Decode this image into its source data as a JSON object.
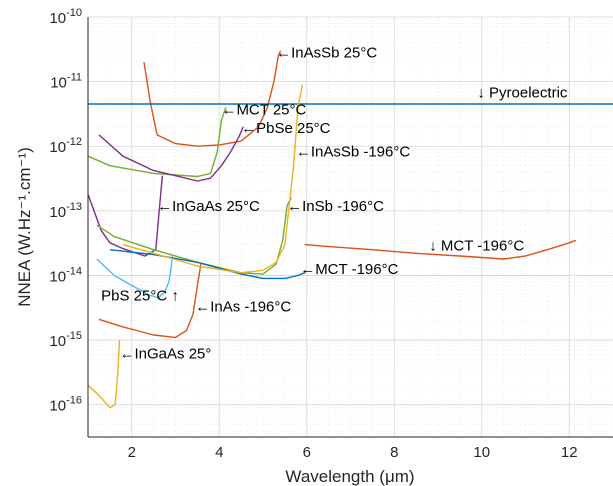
{
  "chart_data": {
    "type": "line",
    "xlabel": "Wavelength (μm)",
    "ylabel": "NNEA (W.Hz⁻¹.cm⁻¹)",
    "xlim": [
      1,
      13
    ],
    "ylim_log10": [
      -16.5,
      -10
    ],
    "yscale": "log",
    "grid": true,
    "x_ticks": [
      "2",
      "4",
      "6",
      "8",
      "10",
      "12"
    ],
    "y_ticks": [
      {
        "base": "10",
        "exp": "-16"
      },
      {
        "base": "10",
        "exp": "-15"
      },
      {
        "base": "10",
        "exp": "-14"
      },
      {
        "base": "10",
        "exp": "-13"
      },
      {
        "base": "10",
        "exp": "-12"
      },
      {
        "base": "10",
        "exp": "-11"
      },
      {
        "base": "10",
        "exp": "-10"
      }
    ],
    "series": [
      {
        "color": "#d95319",
        "points": [
          [
            2.28,
            2e-11
          ],
          [
            2.42,
            5e-12
          ],
          [
            2.58,
            1.5e-12
          ],
          [
            3.0,
            1.1e-12
          ],
          [
            3.5,
            1e-12
          ],
          [
            4.0,
            1.05e-12
          ],
          [
            4.5,
            1.2e-12
          ],
          [
            4.9,
            2e-12
          ],
          [
            5.1,
            4e-12
          ],
          [
            5.25,
            1e-11
          ],
          [
            5.35,
            2.5e-11
          ],
          [
            5.4,
            3e-11
          ]
        ]
      },
      {
        "color": "#0072bd",
        "points": [
          [
            1.0,
            4.5e-12
          ],
          [
            13.0,
            4.5e-12
          ]
        ]
      },
      {
        "color": "#77ac30",
        "points": [
          [
            1.0,
            7e-13
          ],
          [
            1.5,
            5e-13
          ],
          [
            2.5,
            3.8e-13
          ],
          [
            3.5,
            3.4e-13
          ],
          [
            3.8,
            3.8e-13
          ],
          [
            3.95,
            8e-13
          ],
          [
            4.05,
            2.5e-12
          ],
          [
            4.15,
            4e-12
          ]
        ]
      },
      {
        "color": "#7e2f8e",
        "points": [
          [
            1.25,
            1.5e-12
          ],
          [
            1.8,
            7e-13
          ],
          [
            2.5,
            4.2e-13
          ],
          [
            3.0,
            3.5e-13
          ],
          [
            3.5,
            2.9e-13
          ],
          [
            3.8,
            3.2e-13
          ],
          [
            4.05,
            5e-13
          ],
          [
            4.25,
            8e-13
          ],
          [
            4.45,
            1.4e-12
          ],
          [
            4.55,
            2e-12
          ]
        ]
      },
      {
        "color": "#7e2f8e",
        "points": [
          [
            1.0,
            1.8e-13
          ],
          [
            1.3,
            5e-14
          ],
          [
            1.5,
            3.2e-14
          ],
          [
            1.8,
            2.6e-14
          ],
          [
            2.3,
            2e-14
          ],
          [
            2.55,
            2.5e-14
          ],
          [
            2.65,
            1.5e-13
          ],
          [
            2.7,
            3.5e-13
          ]
        ]
      },
      {
        "color": "#edb120",
        "points": [
          [
            1.0,
            2e-16
          ],
          [
            1.25,
            1.4e-16
          ],
          [
            1.5,
            9e-17
          ],
          [
            1.62,
            1e-16
          ],
          [
            1.68,
            3e-16
          ],
          [
            1.72,
            1e-15
          ]
        ]
      },
      {
        "color": "#d95319",
        "points": [
          [
            1.25,
            2.1e-15
          ],
          [
            1.8,
            1.6e-15
          ],
          [
            2.5,
            1.2e-15
          ],
          [
            3.0,
            1.1e-15
          ],
          [
            3.25,
            1.4e-15
          ],
          [
            3.4,
            2.5e-15
          ],
          [
            3.5,
            7e-15
          ],
          [
            3.58,
            1.5e-14
          ]
        ]
      },
      {
        "color": "#4dbeee",
        "points": [
          [
            1.2,
            1.8e-14
          ],
          [
            1.6,
            1e-14
          ],
          [
            2.0,
            7e-15
          ],
          [
            2.4,
            5e-15
          ],
          [
            2.6,
            4.5e-15
          ],
          [
            2.75,
            5.5e-15
          ],
          [
            2.85,
            8e-15
          ],
          [
            2.9,
            1.3e-14
          ],
          [
            2.93,
            2e-14
          ]
        ]
      },
      {
        "color": "#77ac30",
        "points": [
          [
            1.2,
            6e-14
          ],
          [
            1.6,
            4e-14
          ],
          [
            2.5,
            2.5e-14
          ],
          [
            3.5,
            1.6e-14
          ],
          [
            4.5,
            1.1e-14
          ],
          [
            5.0,
            1.05e-14
          ],
          [
            5.3,
            1.5e-14
          ],
          [
            5.45,
            3.5e-14
          ],
          [
            5.55,
            1.2e-13
          ],
          [
            5.65,
            1.6e-13
          ]
        ]
      },
      {
        "color": "#0072bd",
        "points": [
          [
            1.5,
            2.5e-14
          ],
          [
            2.5,
            2.1e-14
          ],
          [
            3.5,
            1.6e-14
          ],
          [
            4.5,
            1.05e-14
          ],
          [
            5.0,
            9e-15
          ],
          [
            5.5,
            9e-15
          ],
          [
            5.8,
            1e-14
          ],
          [
            5.95,
            1.1e-14
          ]
        ]
      },
      {
        "color": "#edb120",
        "points": [
          [
            1.8,
            3e-14
          ],
          [
            2.5,
            2.2e-14
          ],
          [
            3.5,
            1.4e-14
          ],
          [
            4.5,
            1.1e-14
          ],
          [
            5.0,
            1.2e-14
          ],
          [
            5.3,
            1.6e-14
          ],
          [
            5.5,
            3e-14
          ],
          [
            5.7,
            5e-13
          ],
          [
            5.8,
            4e-12
          ],
          [
            5.9,
            9e-12
          ]
        ]
      },
      {
        "color": "#d95319",
        "points": [
          [
            5.95,
            3e-14
          ],
          [
            6.5,
            2.8e-14
          ],
          [
            7.5,
            2.5e-14
          ],
          [
            8.5,
            2.2e-14
          ],
          [
            9.5,
            2e-14
          ],
          [
            10.5,
            1.8e-14
          ],
          [
            11.0,
            2e-14
          ],
          [
            11.5,
            2.5e-14
          ],
          [
            12.0,
            3.2e-14
          ],
          [
            12.15,
            3.5e-14
          ]
        ]
      }
    ],
    "annotations": [
      {
        "text": "←InAsSb 25°C",
        "x": 5.3,
        "y": 2.8e-11
      },
      {
        "text": "↓ Pyroelectric",
        "x": 9.9,
        "y": 6.8e-12
      },
      {
        "text": "←MCT 25°C",
        "x": 4.05,
        "y": 3.7e-12
      },
      {
        "text": "←PbSe 25°C",
        "x": 4.5,
        "y": 1.9e-12
      },
      {
        "text": "←InAsSb -196°C",
        "x": 5.75,
        "y": 8.3e-13
      },
      {
        "text": "←InGaAs 25°C",
        "x": 2.58,
        "y": 1.18e-13
      },
      {
        "text": "←InSb -196°C",
        "x": 5.55,
        "y": 1.18e-13
      },
      {
        "text": "↓ MCT -196°C",
        "x": 8.8,
        "y": 2.9e-14
      },
      {
        "text": "←MCT -196°C",
        "x": 5.85,
        "y": 1.25e-14
      },
      {
        "text": "PbS 25°C ↑",
        "x": 1.3,
        "y": 4.9e-15
      },
      {
        "text": "←InAs -196°C",
        "x": 3.45,
        "y": 3.3e-15
      },
      {
        "text": "←InGaAs 25°",
        "x": 1.72,
        "y": 6.2e-16
      }
    ]
  }
}
